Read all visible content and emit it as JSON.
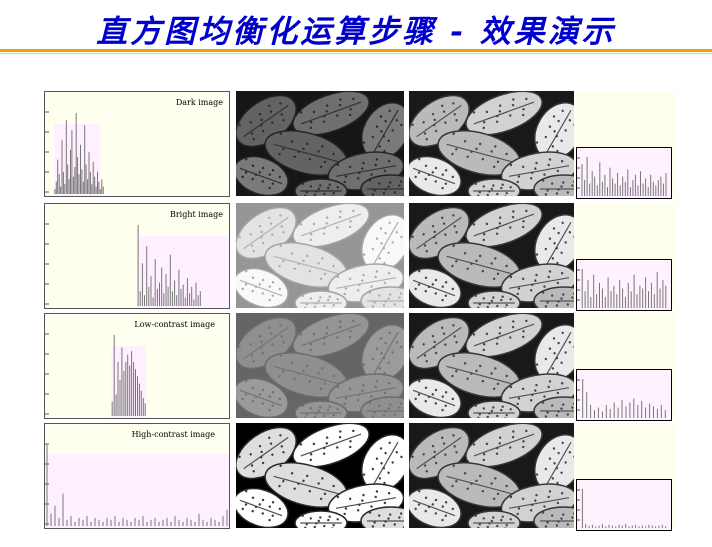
{
  "slide": {
    "title": "直方图均衡化运算步骤 - 效果演示",
    "accent_color": "#0000cc",
    "rule_color": "#f0a000"
  },
  "rows": [
    {
      "label": "Dark image",
      "brightness": 0.28,
      "contrast": 0.55,
      "histogram": [
        2,
        5,
        14,
        8,
        3,
        22,
        9,
        4,
        30,
        12,
        6,
        18,
        26,
        7,
        11,
        33,
        15,
        8,
        20,
        10,
        5,
        28,
        12,
        6,
        17,
        9,
        4,
        13,
        7,
        3,
        9,
        5,
        2,
        6,
        3
      ]
    },
    {
      "label": "Bright image",
      "brightness": 0.78,
      "contrast": 0.55,
      "histogram": [
        38,
        7,
        20,
        5,
        28,
        9,
        14,
        4,
        22,
        8,
        11,
        18,
        6,
        15,
        9,
        24,
        7,
        12,
        5,
        17,
        8,
        10,
        4,
        13,
        6,
        9,
        3,
        11,
        5,
        7
      ]
    },
    {
      "label": "Low-contrast image",
      "brightness": 0.5,
      "contrast": 0.3,
      "histogram": [
        8,
        45,
        12,
        30,
        20,
        38,
        25,
        30,
        34,
        28,
        36,
        30,
        26,
        22,
        18,
        14,
        10,
        7
      ]
    },
    {
      "label": "High-contrast image",
      "brightness": 0.55,
      "contrast": 1.6,
      "histogram": [
        40,
        6,
        10,
        4,
        16,
        3,
        5,
        2,
        4,
        3,
        5,
        2,
        4,
        3,
        2,
        4,
        3,
        5,
        2,
        4,
        3,
        2,
        4,
        3,
        5,
        2,
        3,
        4,
        2,
        3,
        4,
        2,
        5,
        3,
        2,
        4,
        3,
        2,
        6,
        3,
        2,
        4,
        3,
        2,
        5,
        8
      ]
    }
  ],
  "equalized": {
    "brightness": 0.5,
    "contrast": 1.15,
    "histograms": [
      [
        18,
        9,
        22,
        7,
        14,
        11,
        6,
        19,
        8,
        12,
        5,
        16,
        10,
        7,
        13,
        6,
        11,
        8,
        15,
        5,
        9,
        12,
        6,
        14,
        7,
        10,
        5,
        12,
        8,
        6,
        9,
        11,
        7,
        13
      ],
      [
        14,
        6,
        10,
        4,
        12,
        5,
        9,
        7,
        4,
        11,
        6,
        8,
        5,
        10,
        7,
        4,
        9,
        6,
        12,
        5,
        8,
        7,
        11,
        6,
        9,
        5,
        13,
        7,
        10,
        8
      ],
      [
        30,
        20,
        10,
        6,
        8,
        5,
        10,
        7,
        12,
        8,
        14,
        9,
        12,
        15,
        10,
        13,
        8,
        11,
        9,
        7,
        10,
        6
      ],
      [
        48,
        5,
        3,
        4,
        2,
        3,
        5,
        2,
        4,
        3,
        2,
        4,
        3,
        5,
        2,
        3,
        4,
        2,
        3,
        2,
        4,
        3,
        2,
        3,
        4,
        2
      ]
    ]
  }
}
